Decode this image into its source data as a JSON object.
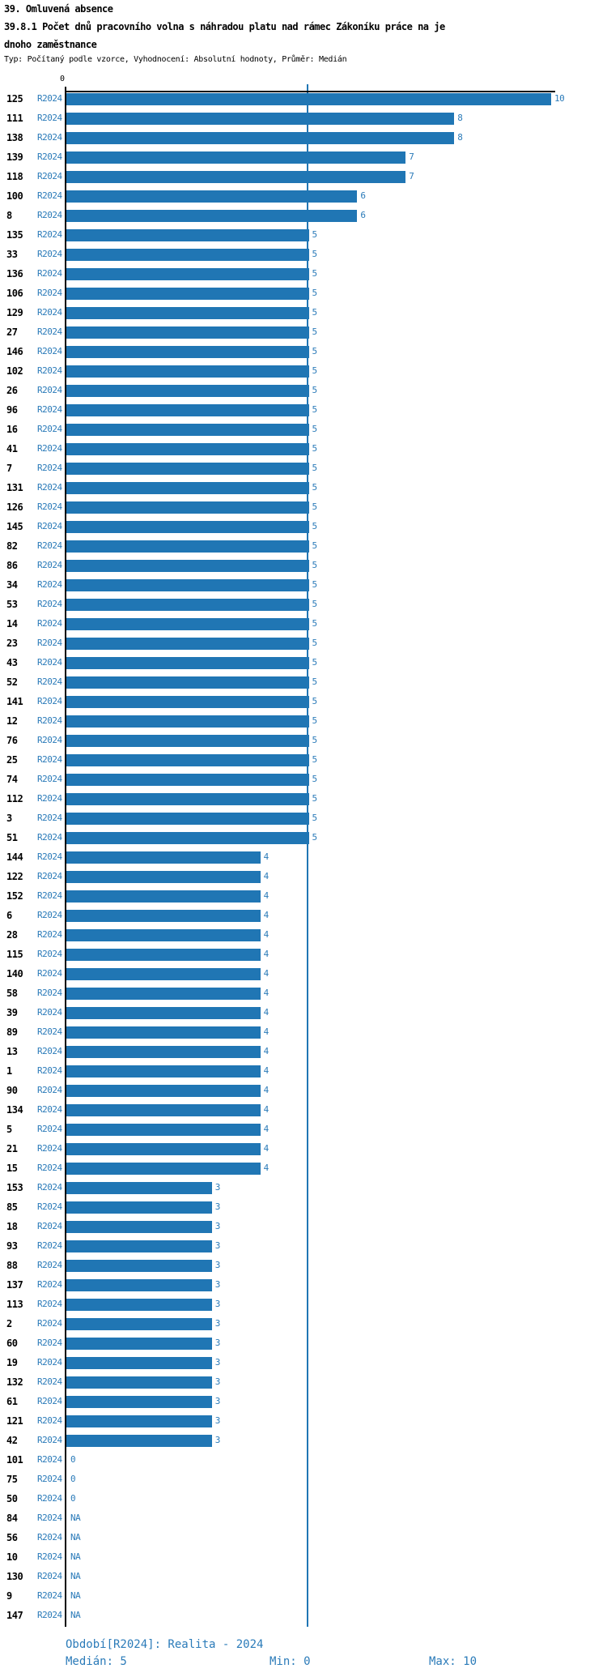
{
  "header": {
    "title": "39. Omluvená absence",
    "subtitle_line1": "39.8.1 Počet dnů pracovního volna s náhradou platu nad rámec Zákoníku práce na je",
    "subtitle_line2": "dnoho zaměstnance",
    "meta": "Typ: Počítaný podle vzorce, Vyhodnocení: Absolutní hodnoty, Průměr: Medián"
  },
  "chart_data": {
    "type": "bar",
    "orientation": "horizontal",
    "series_label": "R2024",
    "axis_zero_tick": "0",
    "xlim": [
      0,
      10
    ],
    "median_line_value": 5,
    "grid": false,
    "na_text": "NA",
    "categories": [
      "125",
      "111",
      "138",
      "139",
      "118",
      "100",
      "8",
      "135",
      "33",
      "136",
      "106",
      "129",
      "27",
      "146",
      "102",
      "26",
      "96",
      "16",
      "41",
      "7",
      "131",
      "126",
      "145",
      "82",
      "86",
      "34",
      "53",
      "14",
      "23",
      "43",
      "52",
      "141",
      "12",
      "76",
      "25",
      "74",
      "112",
      "3",
      "51",
      "144",
      "122",
      "152",
      "6",
      "28",
      "115",
      "140",
      "58",
      "39",
      "89",
      "13",
      "1",
      "90",
      "134",
      "5",
      "21",
      "15",
      "153",
      "85",
      "18",
      "93",
      "88",
      "137",
      "113",
      "2",
      "60",
      "19",
      "132",
      "61",
      "121",
      "42",
      "101",
      "75",
      "50",
      "84",
      "56",
      "10",
      "130",
      "9",
      "147"
    ],
    "values": [
      10,
      8,
      8,
      7,
      7,
      6,
      6,
      5,
      5,
      5,
      5,
      5,
      5,
      5,
      5,
      5,
      5,
      5,
      5,
      5,
      5,
      5,
      5,
      5,
      5,
      5,
      5,
      5,
      5,
      5,
      5,
      5,
      5,
      5,
      5,
      5,
      5,
      5,
      5,
      4,
      4,
      4,
      4,
      4,
      4,
      4,
      4,
      4,
      4,
      4,
      4,
      4,
      4,
      4,
      4,
      4,
      3,
      3,
      3,
      3,
      3,
      3,
      3,
      3,
      3,
      3,
      3,
      3,
      3,
      3,
      0,
      0,
      0,
      "NA",
      "NA",
      "NA",
      "NA",
      "NA",
      "NA"
    ]
  },
  "footer": {
    "period": "Období[R2024]: Realita - 2024",
    "median": "Medián: 5",
    "min": "Min: 0",
    "max": "Max: 10"
  },
  "colors": {
    "bar": "#2076b4",
    "text_blue": "#2b7bb9",
    "axis": "#000000"
  }
}
